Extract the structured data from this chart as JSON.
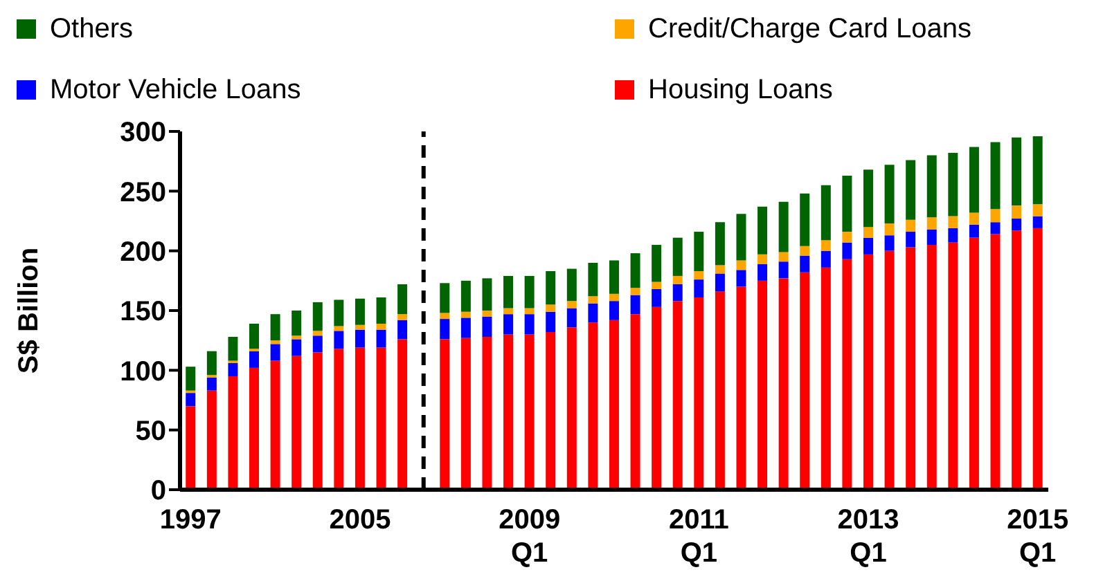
{
  "chart_data": {
    "type": "bar",
    "stacked": true,
    "ylabel": "S$ Billion",
    "categories": [
      "1997",
      null,
      null,
      null,
      null,
      null,
      null,
      null,
      "2005",
      null,
      null,
      null,
      null,
      null,
      null,
      null,
      "2009 Q1",
      null,
      null,
      null,
      null,
      null,
      null,
      null,
      "2011 Q1",
      null,
      null,
      null,
      null,
      null,
      null,
      null,
      "2013 Q1",
      null,
      null,
      null,
      null,
      null,
      null,
      null,
      "2015 Q1"
    ],
    "series": [
      {
        "name": "Housing Loans",
        "color": "#ff0000",
        "values": [
          70,
          83,
          95,
          102,
          108,
          112,
          115,
          118,
          119,
          119,
          126,
          null,
          126,
          127,
          128,
          130,
          130,
          132,
          136,
          140,
          142,
          147,
          153,
          158,
          161,
          166,
          170,
          175,
          177,
          182,
          186,
          193,
          197,
          200,
          203,
          205,
          207,
          211,
          214,
          217,
          219
        ]
      },
      {
        "name": "Motor Vehicle Loans",
        "color": "#0000ff",
        "values": [
          11,
          11,
          11,
          14,
          14,
          14,
          14,
          15,
          15,
          15,
          16,
          null,
          17,
          17,
          17,
          17,
          17,
          17,
          16,
          16,
          16,
          16,
          15,
          14,
          15,
          15,
          14,
          14,
          14,
          14,
          14,
          14,
          14,
          13,
          13,
          13,
          12,
          11,
          10,
          10,
          10
        ]
      },
      {
        "name": "Credit/Charge Card Loans",
        "color": "#ffa500",
        "values": [
          2,
          2,
          2,
          2,
          3,
          3,
          4,
          4,
          4,
          5,
          5,
          null,
          5,
          5,
          5,
          5,
          5,
          6,
          6,
          6,
          6,
          6,
          6,
          7,
          7,
          7,
          8,
          8,
          8,
          8,
          9,
          9,
          9,
          10,
          10,
          10,
          10,
          10,
          11,
          11,
          10
        ]
      },
      {
        "name": "Others",
        "color": "#006400",
        "values": [
          20,
          20,
          20,
          21,
          22,
          21,
          24,
          22,
          22,
          22,
          25,
          null,
          25,
          26,
          27,
          27,
          27,
          28,
          27,
          28,
          28,
          29,
          31,
          32,
          33,
          36,
          39,
          40,
          42,
          44,
          46,
          47,
          48,
          49,
          50,
          52,
          53,
          55,
          56,
          57,
          57
        ]
      }
    ],
    "ylim": [
      0,
      300
    ],
    "yticks": [
      0,
      50,
      100,
      150,
      200,
      250,
      300
    ],
    "ref_lines": [
      {
        "axis": "x",
        "value": null,
        "line_style": "dashed",
        "color": "#000000"
      }
    ],
    "legend": "top"
  }
}
